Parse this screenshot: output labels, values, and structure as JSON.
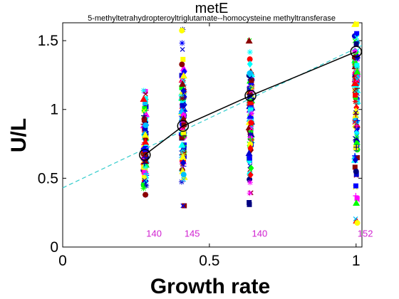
{
  "chart_data": {
    "type": "scatter",
    "title": "metE",
    "subtitle": "5-methyltetrahydropteroyltriglutamate--homocysteine methyltransferase",
    "xlabel": "Growth rate",
    "ylabel": "U/L",
    "xlim": [
      0,
      1.02
    ],
    "ylim": [
      0,
      1.63
    ],
    "x_ticks": [
      {
        "value": 0,
        "label": "0"
      },
      {
        "value": 0.5,
        "label": "0.5"
      },
      {
        "value": 1,
        "label": "1"
      }
    ],
    "y_ticks": [
      {
        "value": 0,
        "label": "0"
      },
      {
        "value": 0.5,
        "label": "0.5"
      },
      {
        "value": 1,
        "label": "1"
      },
      {
        "value": 1.5,
        "label": "1.5"
      }
    ],
    "groups": [
      {
        "x": 0.28,
        "count": "140",
        "y_range": [
          0.38,
          1.17
        ],
        "mean": 0.67
      },
      {
        "x": 0.41,
        "count": "145",
        "y_range": [
          0.3,
          1.61
        ],
        "mean": 0.88
      },
      {
        "x": 0.64,
        "count": "140",
        "y_range": [
          0.29,
          1.5
        ],
        "mean": 1.1
      },
      {
        "x": 1.0,
        "count": "152",
        "y_range": [
          0.01,
          1.62
        ],
        "mean": 1.42
      }
    ],
    "mean_line": {
      "x": [
        0.28,
        0.41,
        0.64,
        1.0
      ],
      "y": [
        0.67,
        0.88,
        1.1,
        1.42
      ],
      "color": "#000000"
    },
    "fit_line": {
      "x": [
        0,
        1.02
      ],
      "y": [
        0.43,
        1.465
      ],
      "color": "#33cccc",
      "style": "dashed"
    },
    "count_label_y": 0.1,
    "colors": [
      "#0000ff",
      "#ffff00",
      "#00bfff",
      "#ff00ff",
      "#00ff00",
      "#ff0000",
      "#00ffff",
      "#000080",
      "#8b0000",
      "#0000cd"
    ],
    "grid": false,
    "legend": "none"
  }
}
